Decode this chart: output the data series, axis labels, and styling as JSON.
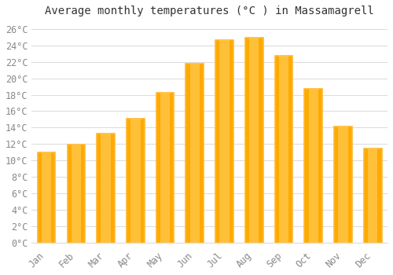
{
  "title": "Average monthly temperatures (°C ) in Massamagrell",
  "months": [
    "Jan",
    "Feb",
    "Mar",
    "Apr",
    "May",
    "Jun",
    "Jul",
    "Aug",
    "Sep",
    "Oct",
    "Nov",
    "Dec"
  ],
  "values": [
    11.0,
    11.9,
    13.3,
    15.1,
    18.2,
    21.8,
    24.6,
    24.9,
    22.7,
    18.7,
    14.1,
    11.5
  ],
  "bar_color": "#FFAA00",
  "bar_edge_color": "#FFB830",
  "background_color": "#FFFFFF",
  "grid_color": "#DDDDDD",
  "tick_label_color": "#888888",
  "title_color": "#333333",
  "ylim": [
    0,
    27
  ],
  "ytick_step": 2,
  "title_fontsize": 10,
  "tick_fontsize": 8.5,
  "font_family": "monospace"
}
